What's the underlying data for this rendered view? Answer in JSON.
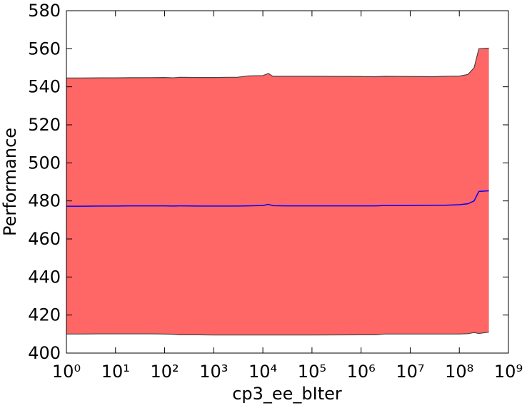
{
  "chart_data": {
    "type": "band-line",
    "x_label": "cp3_ee_bIter",
    "y_label": "Performance",
    "x": [
      1,
      2,
      5,
      10,
      20,
      50,
      100,
      150,
      200,
      500,
      1000,
      2000,
      3000,
      5000,
      10000,
      13000,
      16000,
      30000,
      100000,
      1000000,
      2000000,
      3000000,
      10000000,
      30000000,
      50000000,
      100000000,
      150000000,
      200000000,
      250000000,
      400000000
    ],
    "series": [
      {
        "color": "#0000ff",
        "fill_color": "#ff6666",
        "edge_color": "#444444",
        "values": [
          477.2,
          477.2,
          477.3,
          477.3,
          477.4,
          477.4,
          477.4,
          477.3,
          477.4,
          477.3,
          477.3,
          477.3,
          477.3,
          477.4,
          477.6,
          478.2,
          477.5,
          477.4,
          477.4,
          477.4,
          477.4,
          477.6,
          477.6,
          477.7,
          477.7,
          478,
          478.5,
          480,
          485,
          485.3
        ],
        "upper": [
          544.6,
          544.6,
          544.7,
          544.7,
          544.8,
          544.8,
          544.9,
          544.7,
          545,
          544.9,
          544.9,
          545,
          545,
          545.7,
          545.9,
          547,
          545.5,
          545.5,
          545.5,
          545.4,
          545.3,
          545.5,
          545.4,
          545.3,
          545.5,
          545.6,
          546.5,
          550,
          560,
          560.3
        ],
        "lower": [
          410,
          410,
          410.1,
          410.1,
          410.1,
          410.1,
          410,
          409.9,
          409.6,
          409.6,
          409.5,
          409.5,
          409.5,
          409.5,
          409.5,
          409.5,
          409.5,
          409.5,
          409.5,
          409.6,
          409.6,
          410,
          410,
          410,
          410,
          410,
          410.2,
          410.8,
          410.3,
          411
        ]
      }
    ],
    "xscale": "log",
    "xlim": [
      1,
      1000000000
    ],
    "xticks": [
      {
        "value": 1,
        "label": "10⁰"
      },
      {
        "value": 10,
        "label": "10¹"
      },
      {
        "value": 100,
        "label": "10²"
      },
      {
        "value": 1000,
        "label": "10³"
      },
      {
        "value": 10000,
        "label": "10⁴"
      },
      {
        "value": 100000,
        "label": "10⁵"
      },
      {
        "value": 1000000,
        "label": "10⁶"
      },
      {
        "value": 10000000,
        "label": "10⁷"
      },
      {
        "value": 100000000,
        "label": "10⁸"
      },
      {
        "value": 1000000000,
        "label": "10⁹"
      }
    ],
    "ylim": [
      400,
      580
    ],
    "yticks": [
      400,
      420,
      440,
      460,
      480,
      500,
      520,
      540,
      560,
      580
    ]
  }
}
